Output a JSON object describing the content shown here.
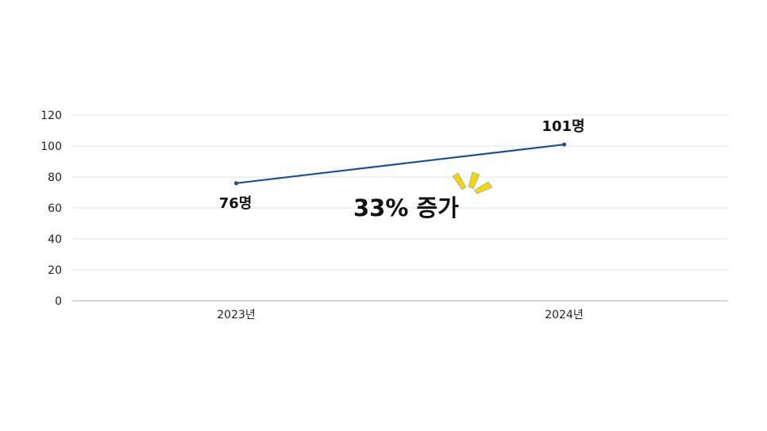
{
  "chart_data": {
    "type": "line",
    "title": "",
    "xlabel": "",
    "ylabel": "",
    "categories": [
      "2023년",
      "2024년"
    ],
    "series": [
      {
        "values": [
          76,
          101
        ],
        "data_labels": [
          "76명",
          "101명"
        ],
        "color": "#1f4e8c"
      }
    ],
    "ylim": [
      0,
      120
    ],
    "yticks": [
      0,
      20,
      40,
      60,
      80,
      100,
      120
    ],
    "grid": true,
    "legend": "none",
    "annotations": [
      {
        "text": "33% 증가",
        "accent_color": "#f5d20a",
        "accent": "sparkle-icon"
      }
    ]
  }
}
